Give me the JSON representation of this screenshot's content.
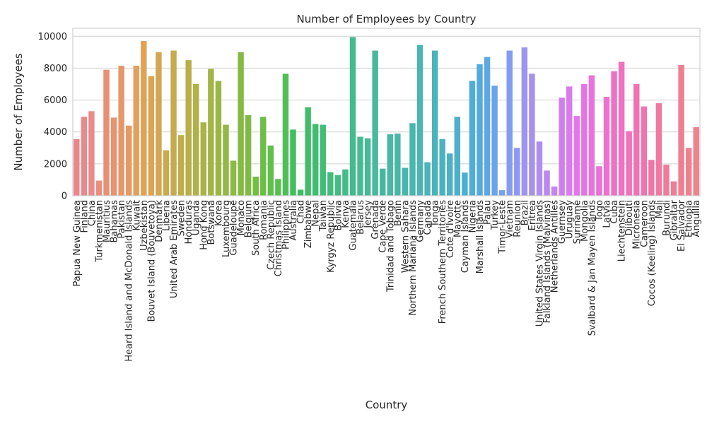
{
  "chart_data": {
    "type": "bar",
    "title": "Number of Employees by Country",
    "xlabel": "Country",
    "ylabel": "Number of Employees",
    "ylim": [
      0,
      10500
    ],
    "yticks": [
      0,
      2000,
      4000,
      6000,
      8000,
      10000
    ],
    "grid": "horizontal",
    "legend": "none",
    "categories": [
      "Papua New Guinea",
      "Finland",
      "China",
      "Turkmenistan",
      "Mauritius",
      "Bahamas",
      "Pakistan",
      "Heard Island and McDonald Islands",
      "Kuwait",
      "Uzbekistan",
      "Bouvet Island (Bouvetoya)",
      "Denmark",
      "Liberia",
      "United Arab Emirates",
      "Sweden",
      "Honduras",
      "Uganda",
      "Hong Kong",
      "Botswana",
      "Korea",
      "Luxembourg",
      "Guadeloupe",
      "Monaco",
      "Belgium",
      "South Africa",
      "Romania",
      "Czech Republic",
      "Christmas Island",
      "Philippines",
      "Australia",
      "Chad",
      "Zimbabwe",
      "Nepal",
      "Taiwan",
      "Kyrgyz Republic",
      "Bolivia",
      "Kenya",
      "Guatemala",
      "Belarus",
      "Jersey",
      "Grenada",
      "Cape Verde",
      "Trinidad and Tobago",
      "Benin",
      "Western Sahara",
      "Northern Mariana Islands",
      "Germany",
      "Canada",
      "Tonga",
      "French Southern Territories",
      "Cote d'Ivoire",
      "Mayotte",
      "Cayman Islands",
      "Nigeria",
      "Marshall Islands",
      "Palau",
      "Turkey",
      "Timor-Leste",
      "Vietnam",
      "Reunion",
      "Brazil",
      "Eritrea",
      "United States Virgin Islands",
      "Falkland Islands (Malvinas)",
      "Netherlands Antilles",
      "Guernsey",
      "Uruguay",
      "Suriname",
      "Mongolia",
      "Svalbard & Jan Mayen Islands",
      "Togo",
      "Latvia",
      "Cuba",
      "Liechtenstein",
      "Djibouti",
      "Micronesia",
      "Cameroon",
      "Cocos (Keeling) Islands",
      "Mali",
      "Burundi",
      "Gibraltar",
      "El Salvador",
      "Ethiopia",
      "Anguilla"
    ],
    "values": [
      3550,
      4950,
      5300,
      950,
      7900,
      4900,
      8150,
      4400,
      8150,
      9700,
      7500,
      9000,
      2850,
      9100,
      3800,
      8500,
      7000,
      4600,
      7950,
      7200,
      4450,
      2200,
      9000,
      5050,
      1200,
      4950,
      3150,
      1050,
      7650,
      4150,
      380,
      5550,
      4500,
      4450,
      1480,
      1300,
      1650,
      9950,
      3700,
      3600,
      9100,
      1700,
      3850,
      3900,
      1750,
      4550,
      9450,
      2100,
      9100,
      3550,
      2650,
      4950,
      1450,
      7200,
      8250,
      8700,
      6900,
      350,
      9100,
      3000,
      9300,
      7650,
      3400,
      1580,
      580,
      6150,
      6850,
      5000,
      7000,
      7550,
      1850,
      6200,
      7800,
      8400,
      4050,
      7000,
      5600,
      2250,
      5800,
      1950,
      900,
      8200,
      3000,
      4300
    ],
    "colors": [
      "#e8878b",
      "#e8898c",
      "#e88b8a",
      "#e88f7f",
      "#e89075",
      "#e79370",
      "#e6976a",
      "#e69a63",
      "#e59f5c",
      "#e2a253",
      "#dba552",
      "#d3a751",
      "#cca94f",
      "#c5ab4d",
      "#bead4b",
      "#b7af4a",
      "#b1b149",
      "#aab348",
      "#a3b546",
      "#9cb645",
      "#94b745",
      "#8db945",
      "#86ba44",
      "#7fbb44",
      "#76bd43",
      "#6dbe47",
      "#63bf4c",
      "#58c050",
      "#4fbf55",
      "#43be5c",
      "#40bd63",
      "#41bc6a",
      "#42bc72",
      "#42bc78",
      "#43bb7e",
      "#44bb83",
      "#45bb89",
      "#45ba8e",
      "#46ba93",
      "#46b998",
      "#47b99c",
      "#47b8a0",
      "#48b8a4",
      "#48b7a8",
      "#48b6ab",
      "#49b6af",
      "#4ab5b3",
      "#4ab4b8",
      "#4ab3bc",
      "#4bb2c0",
      "#4cb1c5",
      "#4db0ca",
      "#4dafd0",
      "#4fadd7",
      "#53aade",
      "#5ea7e5",
      "#6ba4ea",
      "#78a0ee",
      "#849cf0",
      "#8f98f1",
      "#9b95f1",
      "#a691f1",
      "#b08df0",
      "#bb88ef",
      "#c584ee",
      "#cf7fed",
      "#d97bec",
      "#e277ea",
      "#e674e4",
      "#e972dc",
      "#eb71d5",
      "#ed71ce",
      "#ee71c7",
      "#ef71c0",
      "#ef72ba",
      "#ef73b3",
      "#ef75ad",
      "#ef77a7",
      "#ef79a1",
      "#ef7b9b",
      "#ef7d96",
      "#ee7f92",
      "#ee818e",
      "#ee838b"
    ]
  }
}
